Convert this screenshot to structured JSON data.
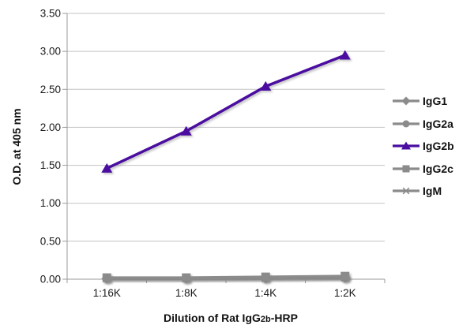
{
  "chart_data": {
    "type": "line",
    "title": "",
    "categories": [
      "1:16K",
      "1:8K",
      "1:4K",
      "1:2K"
    ],
    "series": [
      {
        "name": "IgG1",
        "marker": "diamond",
        "color": "#8b8b8b",
        "values": [
          0.01,
          0.01,
          0.01,
          0.02
        ]
      },
      {
        "name": "IgG2a",
        "marker": "circle",
        "color": "#8b8b8b",
        "values": [
          0.01,
          0.01,
          0.02,
          0.02
        ]
      },
      {
        "name": "IgG2b",
        "marker": "triangle",
        "color": "#4a0da0",
        "values": [
          1.46,
          1.95,
          2.54,
          2.95
        ]
      },
      {
        "name": "IgG2c",
        "marker": "square",
        "color": "#8b8b8b",
        "values": [
          0.02,
          0.02,
          0.03,
          0.04
        ]
      },
      {
        "name": "IgM",
        "marker": "asterisk",
        "color": "#8b8b8b",
        "values": [
          0.01,
          0.01,
          0.01,
          0.02
        ]
      }
    ],
    "xlabel": "Dilution of Rat IgG2b-HRP",
    "xlabel_parts": {
      "prefix": "Dilution of Rat IgG",
      "small": "2b",
      "suffix": "-HRP"
    },
    "ylabel": "O.D. at 405 nm",
    "ylim": [
      0,
      3.5
    ],
    "ytick_step": 0.5,
    "yticks": [
      "0.00",
      "0.50",
      "1.00",
      "1.50",
      "2.00",
      "2.50",
      "3.00",
      "3.50"
    ],
    "grid": true,
    "legend_position": "right",
    "colors": {
      "grid": "#c3c3c3",
      "axis": "#9a9a9a",
      "text": "#1a1a1a"
    }
  }
}
